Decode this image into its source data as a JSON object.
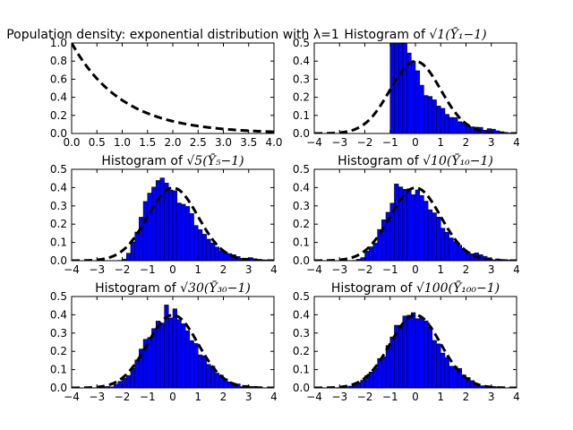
{
  "chart_data": [
    {
      "type": "line",
      "title": "Population density: exponential distribution with λ=1",
      "xlim": [
        0,
        4
      ],
      "ylim": [
        0,
        1
      ],
      "xticks": [
        "0.0",
        "0.5",
        "1.0",
        "1.5",
        "2.0",
        "2.5",
        "3.0",
        "3.5",
        "4.0"
      ],
      "yticks": [
        "0.0",
        "0.2",
        "0.4",
        "0.6",
        "0.8",
        "1.0"
      ],
      "curve": "exp(-x)",
      "grid": false
    },
    {
      "type": "bar",
      "title_prefix": "Histogram of ",
      "title_math": "√1(Ȳ₁−1)",
      "n": 1,
      "xlim": [
        -4,
        4
      ],
      "ylim": [
        0,
        0.5
      ],
      "xticks": [
        "−4",
        "−3",
        "−2",
        "−1",
        "0",
        "1",
        "2",
        "3",
        "4"
      ],
      "yticks": [
        "0.0",
        "0.1",
        "0.2",
        "0.3",
        "0.4",
        "0.5"
      ],
      "overlay": "standard normal density",
      "grid": false
    },
    {
      "type": "bar",
      "title_prefix": "Histogram of ",
      "title_math": "√5(Ȳ₅−1)",
      "n": 5,
      "xlim": [
        -4,
        4
      ],
      "ylim": [
        0,
        0.5
      ],
      "xticks": [
        "−4",
        "−3",
        "−2",
        "−1",
        "0",
        "1",
        "2",
        "3",
        "4"
      ],
      "yticks": [
        "0.0",
        "0.1",
        "0.2",
        "0.3",
        "0.4",
        "0.5"
      ],
      "overlay": "standard normal density",
      "grid": false
    },
    {
      "type": "bar",
      "title_prefix": "Histogram of ",
      "title_math": "√10(Ȳ₁₀−1)",
      "n": 10,
      "xlim": [
        -4,
        4
      ],
      "ylim": [
        0,
        0.5
      ],
      "xticks": [
        "−4",
        "−3",
        "−2",
        "−1",
        "0",
        "1",
        "2",
        "3",
        "4"
      ],
      "yticks": [
        "0.0",
        "0.1",
        "0.2",
        "0.3",
        "0.4",
        "0.5"
      ],
      "overlay": "standard normal density",
      "grid": false
    },
    {
      "type": "bar",
      "title_prefix": "Histogram of ",
      "title_math": "√30(Ȳ₃₀−1)",
      "n": 30,
      "xlim": [
        -4,
        4
      ],
      "ylim": [
        0,
        0.5
      ],
      "xticks": [
        "−4",
        "−3",
        "−2",
        "−1",
        "0",
        "1",
        "2",
        "3",
        "4"
      ],
      "yticks": [
        "0.0",
        "0.1",
        "0.2",
        "0.3",
        "0.4",
        "0.5"
      ],
      "overlay": "standard normal density",
      "grid": false
    },
    {
      "type": "bar",
      "title_prefix": "Histogram of ",
      "title_math": "√100(Ȳ₁₀₀−1)",
      "n": 100,
      "xlim": [
        -4,
        4
      ],
      "ylim": [
        0,
        0.5
      ],
      "xticks": [
        "−4",
        "−3",
        "−2",
        "−1",
        "0",
        "1",
        "2",
        "3",
        "4"
      ],
      "yticks": [
        "0.0",
        "0.1",
        "0.2",
        "0.3",
        "0.4",
        "0.5"
      ],
      "overlay": "standard normal density",
      "grid": false
    }
  ],
  "colors": {
    "bar": "#0000ff",
    "edge": "#000000",
    "curve": "#000000",
    "background": "#ffffff"
  }
}
